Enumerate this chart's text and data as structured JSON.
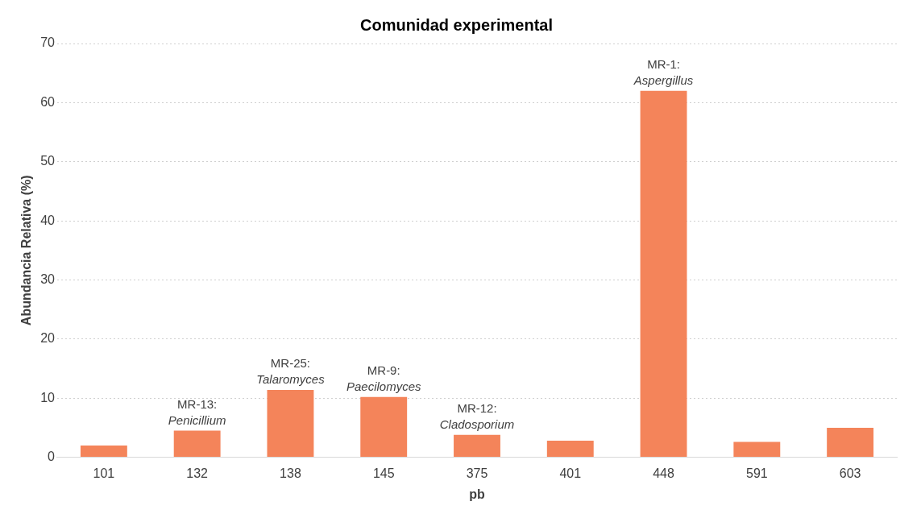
{
  "chart_data": {
    "type": "bar",
    "title": "Comunidad experimental",
    "xlabel": "pb",
    "ylabel": "Abundancia Relativa (%)",
    "categories": [
      "101",
      "132",
      "138",
      "145",
      "375",
      "401",
      "448",
      "591",
      "603"
    ],
    "values": [
      2.0,
      4.5,
      11.4,
      10.2,
      3.8,
      2.8,
      62,
      2.6,
      5.0
    ],
    "color": "#f4845a",
    "ylim": [
      0,
      70
    ],
    "yticks": [
      0,
      10,
      20,
      30,
      40,
      50,
      60,
      70
    ],
    "grid": "y",
    "legend": false,
    "annotations": [
      {
        "text": "MR-13:\nPenicillium",
        "x": "132",
        "y": 4.5
      },
      {
        "text": "MR-25:\nTalaromyces",
        "x": "138",
        "y": 11.4
      },
      {
        "text": "MR-9:\nPaecilomyces",
        "x": "145",
        "y": 10.2
      },
      {
        "text": "MR-12:\nCladosporium",
        "x": "375",
        "y": 3.8
      },
      {
        "text": "MR-1:\nAspergillus",
        "x": "448",
        "y": 62
      }
    ]
  }
}
